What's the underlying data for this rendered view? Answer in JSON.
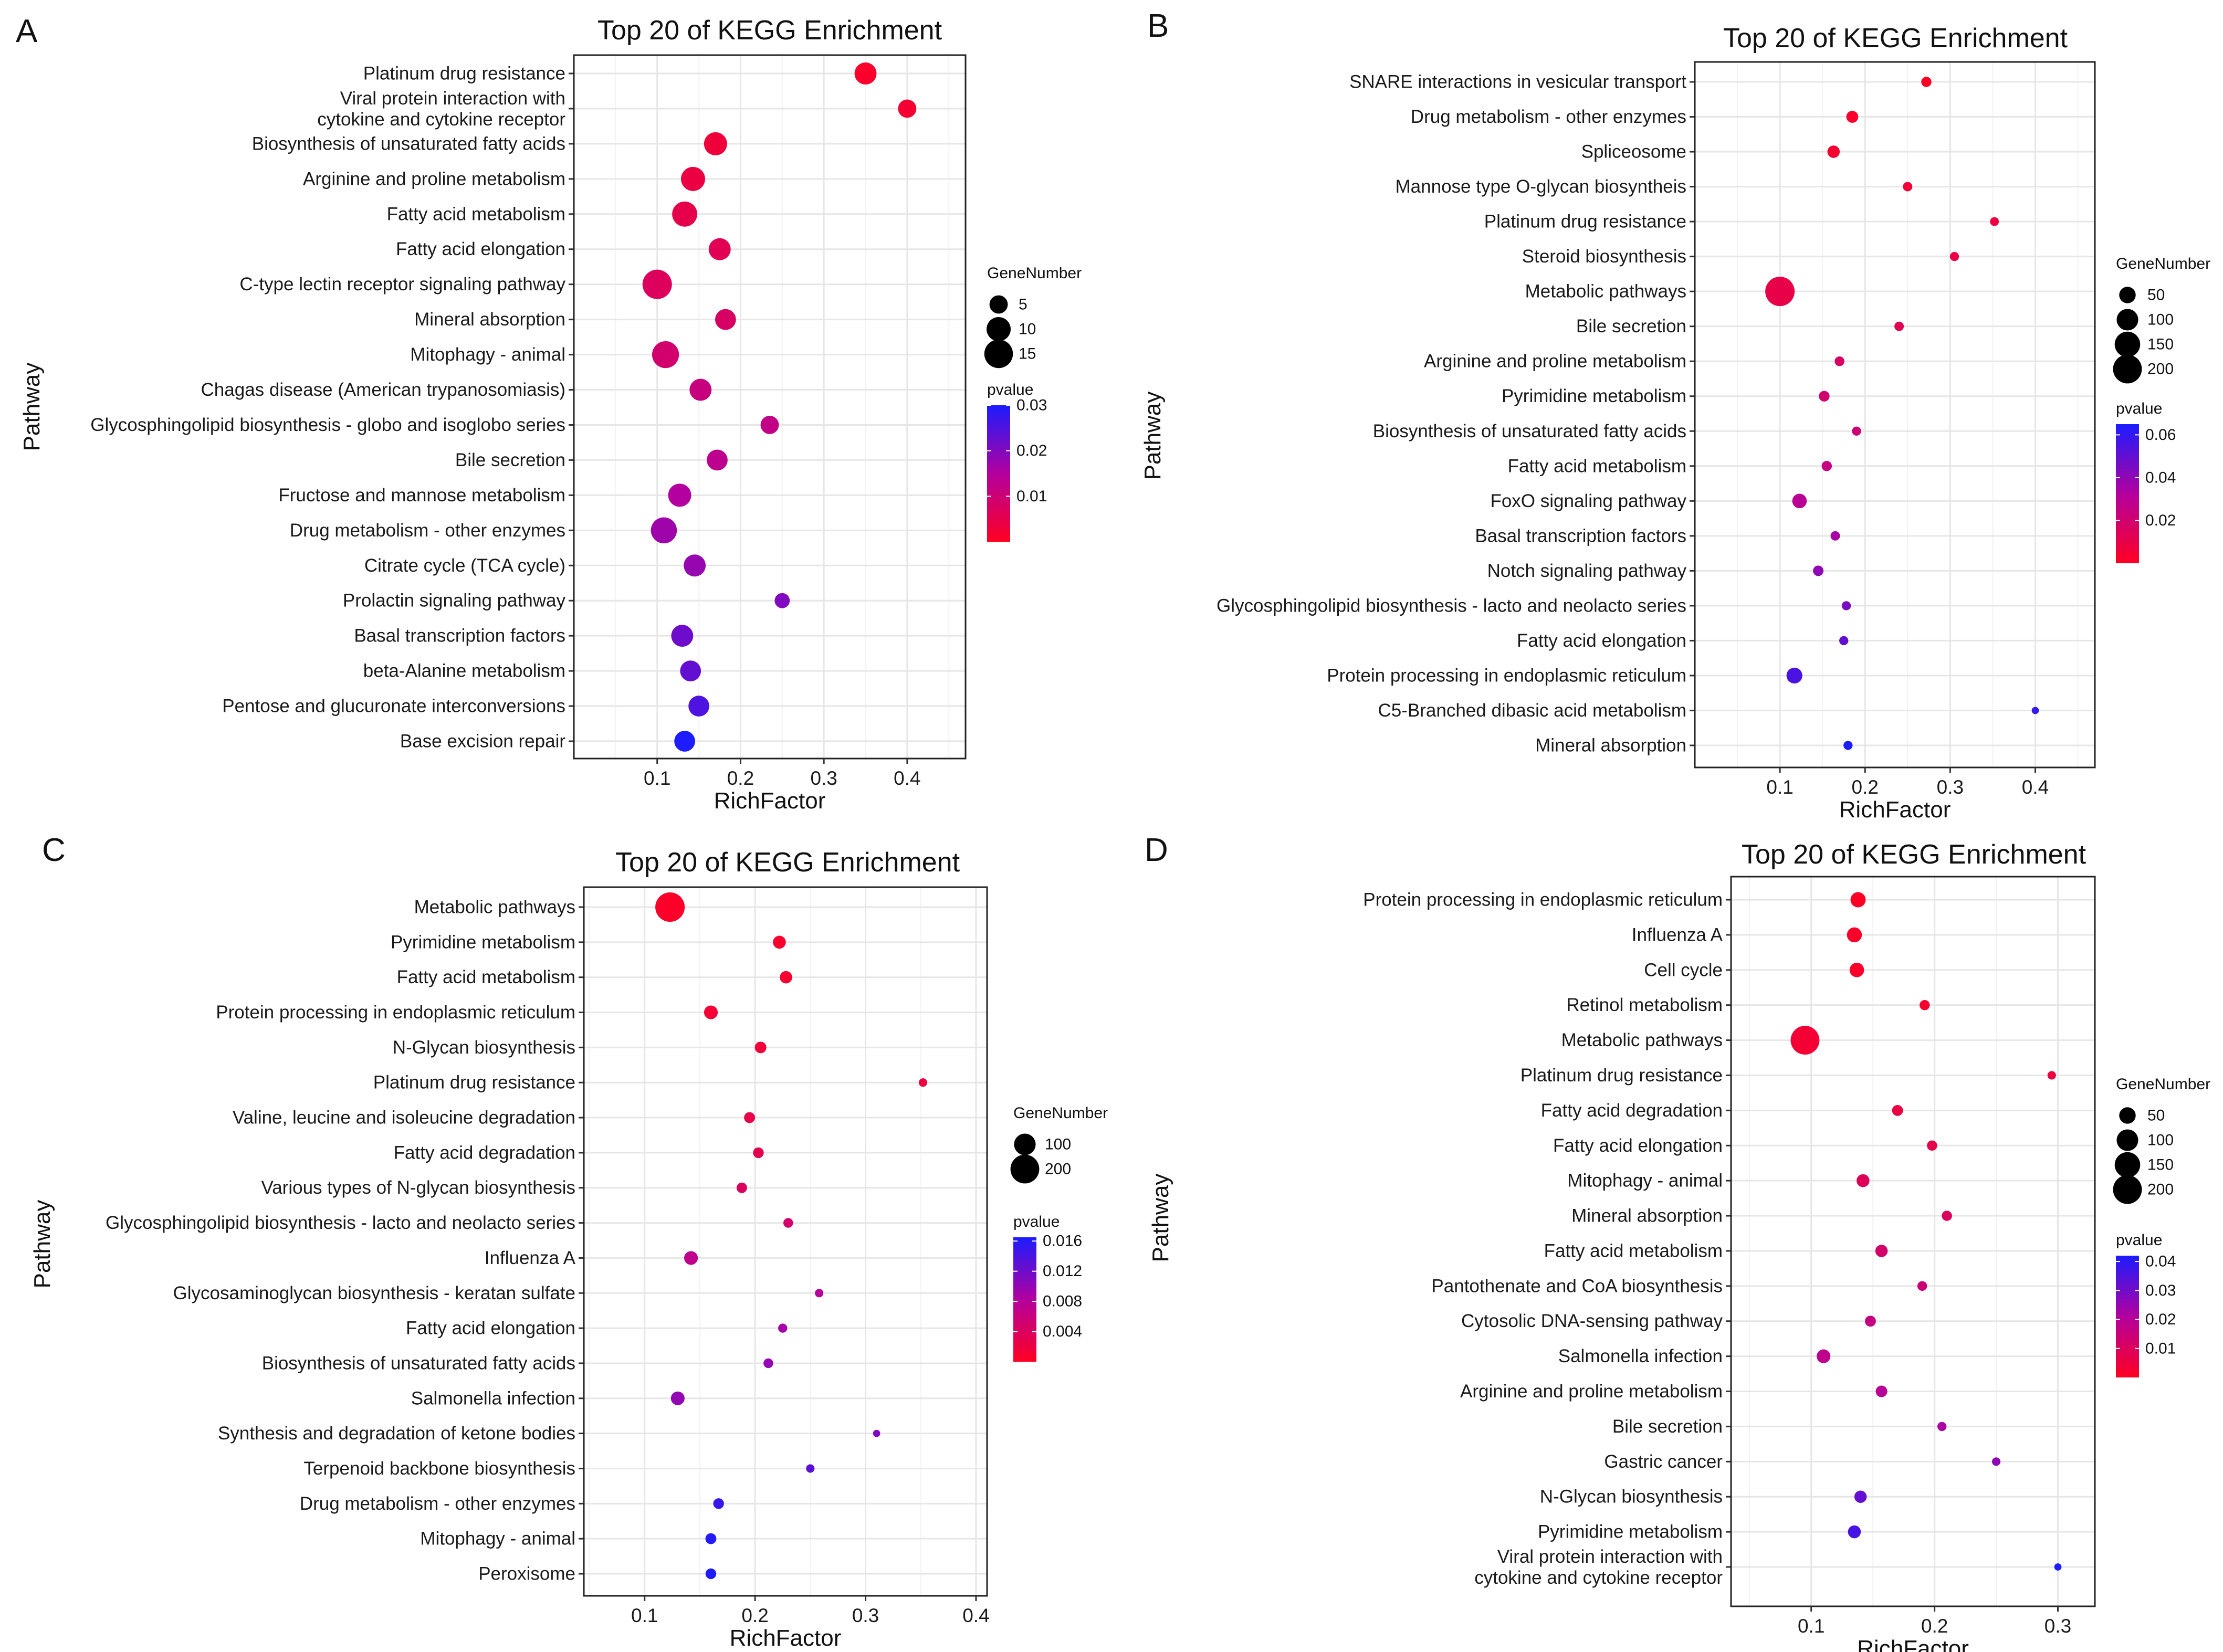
{
  "chart_data": [
    {
      "type": "scatter",
      "panel_label": "A",
      "title": "Top 20 of KEGG Enrichment",
      "xlabel": "RichFactor",
      "ylabel": "Pathway",
      "xlim": [
        0.0,
        0.47
      ],
      "xticks": [
        0.1,
        0.2,
        0.3,
        0.4
      ],
      "xtick_labels": [
        "0.1",
        "0.2",
        "0.3",
        "0.4"
      ],
      "size_legend_title": "GeneNumber",
      "size_legend": [
        5,
        10,
        15
      ],
      "size_max": 16,
      "color_legend_title": "pvalue",
      "pvalue_range": [
        0.0,
        0.03
      ],
      "color_ticks": [
        0.03,
        0.02,
        0.01
      ],
      "color_tick_labels": [
        "0.03",
        "0.02",
        "0.01"
      ],
      "categories": [
        "Platinum drug resistance",
        "Viral protein interaction with\ncytokine and cytokine receptor",
        "Biosynthesis of unsaturated fatty acids",
        "Arginine and proline metabolism",
        "Fatty acid metabolism",
        "Fatty acid elongation",
        "C-type lectin receptor signaling pathway",
        "Mineral absorption",
        "Mitophagy - animal",
        "Chagas disease (American trypanosomiasis)",
        "Glycosphingolipid biosynthesis - globo and isoglobo series",
        "Bile secretion",
        "Fructose and mannose metabolism",
        "Drug metabolism - other enzymes",
        "Citrate cycle (TCA cycle)",
        "Prolactin signaling pathway",
        "Basal transcription factors",
        "beta-Alanine metabolism",
        "Pentose and glucuronate interconversions",
        "Base excision repair"
      ],
      "rich_factor": [
        0.35,
        0.4,
        0.17,
        0.143,
        0.133,
        0.175,
        0.1,
        0.182,
        0.11,
        0.152,
        0.235,
        0.172,
        0.127,
        0.108,
        0.145,
        0.25,
        0.13,
        0.14,
        0.15,
        0.133
      ],
      "gene_number": [
        8,
        5,
        9,
        10,
        11,
        8,
        16,
        7,
        13,
        8,
        5,
        7,
        9,
        12,
        8,
        3,
        8,
        7,
        7,
        7
      ],
      "pvalue": [
        0.001,
        0.002,
        0.003,
        0.004,
        0.005,
        0.006,
        0.007,
        0.008,
        0.009,
        0.011,
        0.012,
        0.013,
        0.015,
        0.017,
        0.018,
        0.02,
        0.022,
        0.023,
        0.025,
        0.03
      ]
    },
    {
      "type": "scatter",
      "panel_label": "B",
      "title": "Top 20 of KEGG Enrichment",
      "xlabel": "RichFactor",
      "ylabel": "Pathway",
      "xlim": [
        0.0,
        0.47
      ],
      "xticks": [
        0.1,
        0.2,
        0.3,
        0.4
      ],
      "xtick_labels": [
        "0.1",
        "0.2",
        "0.3",
        "0.4"
      ],
      "size_legend_title": "GeneNumber",
      "size_legend": [
        50,
        100,
        150,
        200
      ],
      "size_max": 210,
      "color_legend_title": "pvalue",
      "pvalue_range": [
        0.0,
        0.065
      ],
      "color_ticks": [
        0.06,
        0.04,
        0.02
      ],
      "color_tick_labels": [
        "0.06",
        "0.04",
        "0.02"
      ],
      "categories": [
        "SNARE interactions in vesicular transport",
        "Drug metabolism - other enzymes",
        "Spliceosome",
        "Mannose type O-glycan biosyntheis",
        "Platinum drug resistance",
        "Steroid biosynthesis",
        "Metabolic pathways",
        "Bile secretion",
        "Arginine and proline metabolism",
        "Pyrimidine metabolism",
        "Biosynthesis of unsaturated fatty acids",
        "Fatty acid metabolism",
        "FoxO signaling pathway",
        "Basal transcription factors",
        "Notch signaling pathway",
        "Glycosphingolipid biosynthesis - lacto and neolacto series",
        "Fatty acid elongation",
        "Protein processing in endoplasmic reticulum",
        "C5-Branched dibasic acid metabolism",
        "Mineral absorption"
      ],
      "rich_factor": [
        0.272,
        0.185,
        0.163,
        0.25,
        0.352,
        0.305,
        0.1,
        0.24,
        0.17,
        0.152,
        0.19,
        0.155,
        0.123,
        0.165,
        0.145,
        0.178,
        0.175,
        0.117,
        0.4,
        0.18
      ],
      "gene_number": [
        12,
        20,
        22,
        9,
        7,
        8,
        210,
        9,
        10,
        14,
        8,
        12,
        35,
        9,
        13,
        8,
        8,
        45,
        3,
        8
      ],
      "pvalue": [
        0.001,
        0.002,
        0.004,
        0.006,
        0.008,
        0.009,
        0.01,
        0.013,
        0.017,
        0.02,
        0.022,
        0.025,
        0.03,
        0.035,
        0.04,
        0.045,
        0.05,
        0.055,
        0.06,
        0.065
      ]
    },
    {
      "type": "scatter",
      "panel_label": "C",
      "title": "Top 20 of KEGG Enrichment",
      "xlabel": "RichFactor",
      "ylabel": "Pathway",
      "xlim": [
        0.045,
        0.41
      ],
      "xticks": [
        0.1,
        0.2,
        0.3,
        0.4
      ],
      "xtick_labels": [
        "0.1",
        "0.2",
        "0.3",
        "0.4"
      ],
      "size_legend_title": "GeneNumber",
      "size_legend": [
        100,
        200
      ],
      "size_max": 210,
      "color_legend_title": "pvalue",
      "pvalue_range": [
        0.0,
        0.0165
      ],
      "color_ticks": [
        0.016,
        0.012,
        0.008,
        0.004
      ],
      "color_tick_labels": [
        "0.016",
        "0.012",
        "0.008",
        "0.004"
      ],
      "categories": [
        "Metabolic pathways",
        "Pyrimidine metabolism",
        "Fatty acid metabolism",
        "Protein processing in endoplasmic reticulum",
        "N-Glycan biosynthesis",
        "Platinum drug resistance",
        "Valine, leucine and isoleucine degradation",
        "Fatty acid degradation",
        "Various types of N-glycan biosynthesis",
        "Glycosphingolipid biosynthesis - lacto and neolacto series",
        "Influenza A",
        "Glycosaminoglycan biosynthesis - keratan sulfate",
        "Fatty acid elongation",
        "Biosynthesis of unsaturated fatty acids",
        "Salmonella infection",
        "Synthesis and degradation of ketone bodies",
        "Terpenoid backbone biosynthesis",
        "Drug metabolism - other enzymes",
        "Mitophagy - animal",
        "Peroxisome"
      ],
      "rich_factor": [
        0.123,
        0.222,
        0.228,
        0.16,
        0.205,
        0.352,
        0.195,
        0.203,
        0.188,
        0.23,
        0.142,
        0.258,
        0.225,
        0.212,
        0.13,
        0.31,
        0.25,
        0.167,
        0.16,
        0.16
      ],
      "gene_number": [
        210,
        25,
        22,
        30,
        18,
        6,
        15,
        14,
        13,
        10,
        30,
        6,
        8,
        10,
        30,
        3,
        6,
        14,
        15,
        14
      ],
      "pvalue": [
        0.0004,
        0.0008,
        0.001,
        0.0012,
        0.0015,
        0.002,
        0.0025,
        0.003,
        0.004,
        0.005,
        0.007,
        0.008,
        0.009,
        0.01,
        0.01,
        0.011,
        0.013,
        0.015,
        0.016,
        0.0165
      ]
    },
    {
      "type": "scatter",
      "panel_label": "D",
      "title": "Top 20 of KEGG Enrichment",
      "xlabel": "RichFactor",
      "ylabel": "Pathway",
      "xlim": [
        0.035,
        0.33
      ],
      "xticks": [
        0.1,
        0.2,
        0.3
      ],
      "xtick_labels": [
        "0.1",
        "0.2",
        "0.3"
      ],
      "size_legend_title": "GeneNumber",
      "size_legend": [
        50,
        100,
        150,
        200
      ],
      "size_max": 210,
      "color_legend_title": "pvalue",
      "pvalue_range": [
        0.0,
        0.042
      ],
      "color_ticks": [
        0.04,
        0.03,
        0.02,
        0.01
      ],
      "color_tick_labels": [
        "0.04",
        "0.03",
        "0.02",
        "0.01"
      ],
      "categories": [
        "Protein processing in endoplasmic reticulum",
        "Influenza A",
        "Cell cycle",
        "Retinol metabolism",
        "Metabolic pathways",
        "Platinum drug resistance",
        "Fatty acid degradation",
        "Fatty acid elongation",
        "Mitophagy - animal",
        "Mineral absorption",
        "Fatty acid metabolism",
        "Pantothenate and CoA biosynthesis",
        "Cytosolic DNA-sensing pathway",
        "Salmonella infection",
        "Arginine and proline metabolism",
        "Bile secretion",
        "Gastric cancer",
        "N-Glycan biosynthesis",
        "Pyrimidine metabolism",
        "Viral protein interaction with\ncytokine and cytokine receptor"
      ],
      "rich_factor": [
        0.138,
        0.135,
        0.137,
        0.192,
        0.095,
        0.295,
        0.17,
        0.198,
        0.142,
        0.21,
        0.157,
        0.19,
        0.148,
        0.11,
        0.157,
        0.206,
        0.25,
        0.14,
        0.135,
        0.3
      ],
      "gene_number": [
        40,
        38,
        35,
        12,
        200,
        6,
        15,
        12,
        25,
        12,
        22,
        10,
        15,
        30,
        18,
        8,
        6,
        22,
        25,
        3
      ],
      "pvalue": [
        0.0005,
        0.001,
        0.0015,
        0.002,
        0.003,
        0.005,
        0.006,
        0.007,
        0.009,
        0.01,
        0.012,
        0.014,
        0.016,
        0.018,
        0.02,
        0.022,
        0.026,
        0.032,
        0.036,
        0.042
      ]
    }
  ]
}
